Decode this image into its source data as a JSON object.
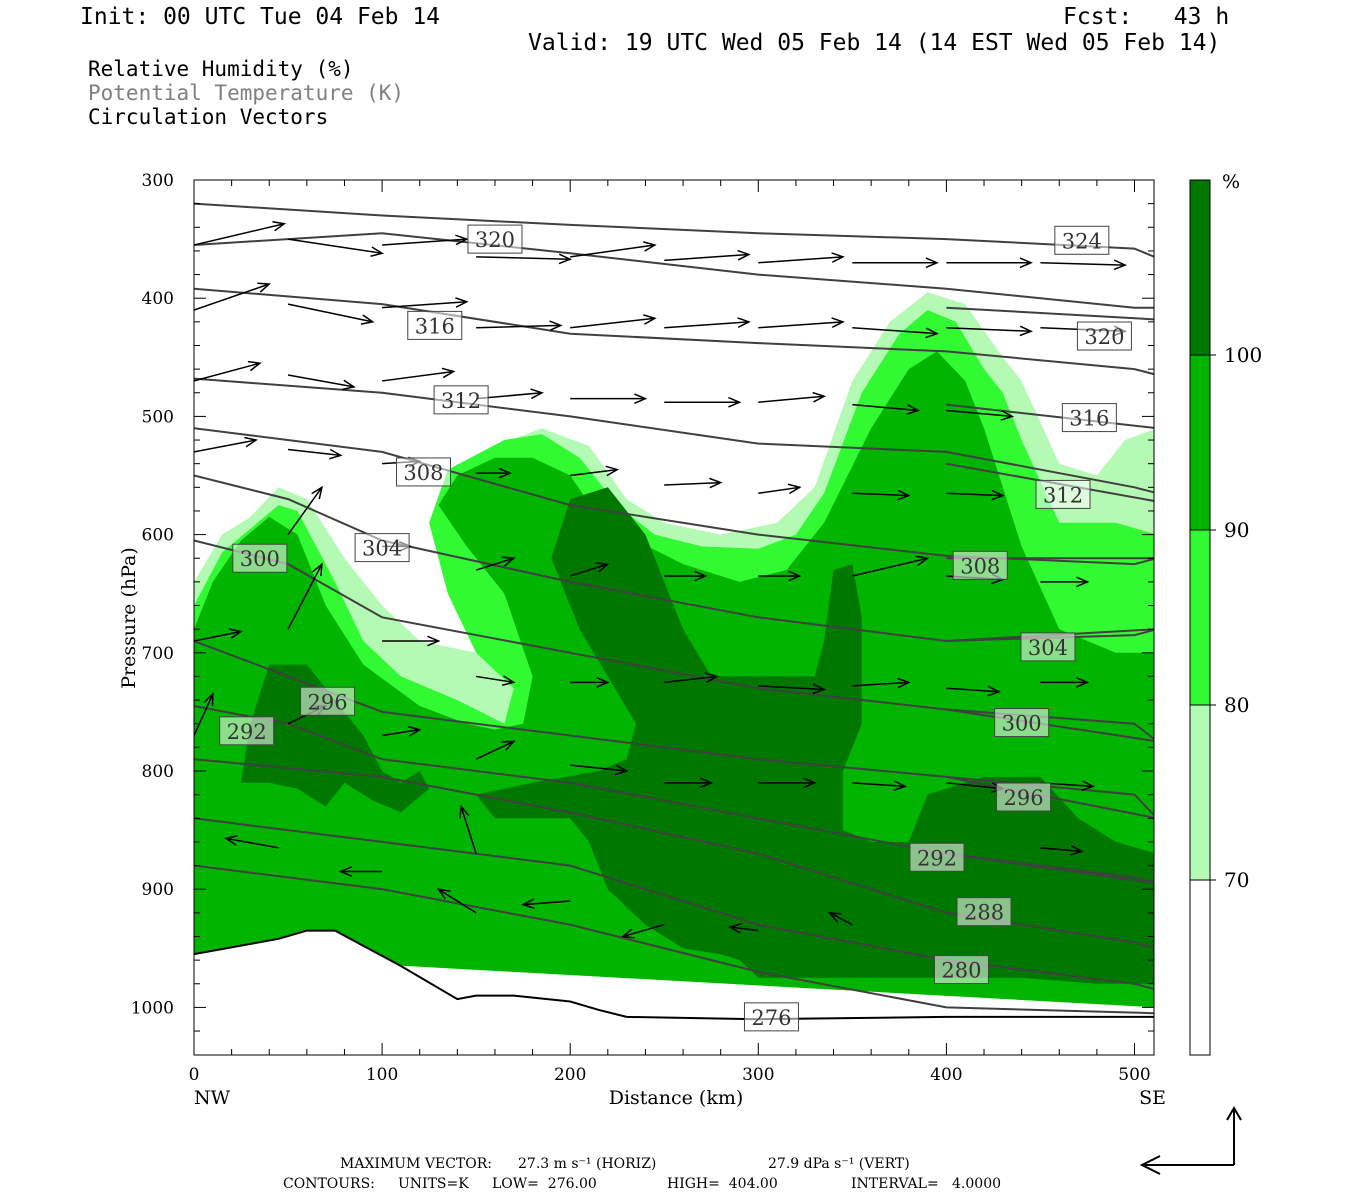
{
  "header": {
    "init": "Init: 00 UTC Tue 04 Feb 14",
    "fcst": "Fcst:   43 h",
    "valid": "Valid: 19 UTC Wed 05 Feb 14 (14 EST Wed 05 Feb 14)"
  },
  "legend": {
    "rh": "Relative Humidity (%)",
    "theta": "Potential Temperature (K)",
    "vectors": "Circulation Vectors"
  },
  "footer": {
    "max_vector_label": "MAXIMUM VECTOR:",
    "max_vector_horiz": "27.3 m s⁻¹ (HORIZ)",
    "max_vector_vert": "27.9 dPa s⁻¹ (VERT)",
    "contours_label": "CONTOURS:",
    "contours_units": "UNITS=K",
    "contours_low": "LOW=  276.00",
    "contours_high": "HIGH=  404.00",
    "contours_interval": "INTERVAL=   4.0000"
  },
  "colorbar": {
    "unit": "%",
    "levels": [
      {
        "label": "100",
        "color": "#007800"
      },
      {
        "label": "90",
        "color": "#00b400"
      },
      {
        "label": "80",
        "color": "#32fa32"
      },
      {
        "label": "70",
        "color": "#b4fab4"
      },
      {
        "label": "",
        "color": "#ffffff"
      }
    ]
  },
  "chart_data": {
    "type": "cross-section",
    "xlabel": "Distance (km)",
    "ylabel": "Pressure (hPa)",
    "x_ticks": [
      0,
      100,
      200,
      300,
      400,
      500
    ],
    "y_ticks": [
      300,
      400,
      500,
      600,
      700,
      800,
      900,
      1000
    ],
    "xlim": [
      0,
      512
    ],
    "ylim": [
      1040,
      300
    ],
    "endpoints": {
      "left": "NW",
      "right": "SE"
    },
    "rh_levels": [
      70,
      80,
      90,
      100
    ],
    "rh_colors": [
      "#b4fab4",
      "#32fa32",
      "#00b400",
      "#007800"
    ],
    "theta_line_color": "#404040",
    "theta_contours": [
      {
        "value": 324,
        "points": [
          [
            0,
            320
          ],
          [
            100,
            330
          ],
          [
            200,
            338
          ],
          [
            300,
            345
          ],
          [
            400,
            350
          ],
          [
            500,
            358
          ],
          [
            512,
            366
          ]
        ],
        "label_at": [
          472,
          351
        ]
      },
      {
        "value": 320,
        "points": [
          [
            0,
            355
          ],
          [
            100,
            345
          ],
          [
            200,
            362
          ],
          [
            300,
            380
          ],
          [
            400,
            392
          ],
          [
            500,
            408
          ],
          [
            512,
            408
          ]
        ],
        "label_at": [
          160,
          350
        ]
      },
      {
        "value": 320,
        "points": [
          [
            400,
            408
          ],
          [
            512,
            418
          ]
        ],
        "label_at": [
          484,
          432
        ]
      },
      {
        "value": 316,
        "points": [
          [
            0,
            392
          ],
          [
            100,
            405
          ],
          [
            200,
            430
          ],
          [
            300,
            438
          ],
          [
            400,
            445
          ],
          [
            500,
            460
          ],
          [
            512,
            465
          ]
        ],
        "label_at": [
          128,
          423
        ]
      },
      {
        "value": 316,
        "points": [
          [
            400,
            490
          ],
          [
            512,
            510
          ]
        ],
        "label_at": [
          476,
          501
        ]
      },
      {
        "value": 312,
        "points": [
          [
            0,
            468
          ],
          [
            100,
            480
          ],
          [
            200,
            500
          ],
          [
            300,
            523
          ],
          [
            400,
            530
          ],
          [
            500,
            560
          ],
          [
            512,
            565
          ]
        ],
        "label_at": [
          142,
          486
        ]
      },
      {
        "value": 312,
        "points": [
          [
            400,
            540
          ],
          [
            512,
            572
          ]
        ],
        "label_at": [
          462,
          566
        ]
      },
      {
        "value": 308,
        "points": [
          [
            0,
            510
          ],
          [
            100,
            530
          ],
          [
            200,
            575
          ],
          [
            300,
            600
          ],
          [
            400,
            618
          ],
          [
            500,
            625
          ],
          [
            512,
            620
          ]
        ],
        "label_at": [
          122,
          547
        ]
      },
      {
        "value": 308,
        "points": [
          [
            400,
            620
          ],
          [
            512,
            620
          ]
        ],
        "label_at": [
          418,
          626
        ]
      },
      {
        "value": 304,
        "points": [
          [
            0,
            550
          ],
          [
            50,
            570
          ],
          [
            100,
            605
          ],
          [
            200,
            640
          ],
          [
            300,
            670
          ],
          [
            400,
            690
          ],
          [
            500,
            685
          ],
          [
            512,
            680
          ]
        ],
        "label_at": [
          100,
          611
        ]
      },
      {
        "value": 304,
        "points": [
          [
            400,
            690
          ],
          [
            512,
            680
          ]
        ],
        "label_at": [
          454,
          695
        ]
      },
      {
        "value": 300,
        "points": [
          [
            0,
            605
          ],
          [
            50,
            625
          ],
          [
            100,
            670
          ],
          [
            200,
            700
          ],
          [
            300,
            730
          ],
          [
            400,
            748
          ],
          [
            500,
            760
          ],
          [
            512,
            775
          ]
        ],
        "label_at": [
          35,
          620
        ]
      },
      {
        "value": 300,
        "points": [
          [
            400,
            748
          ],
          [
            512,
            775
          ]
        ],
        "label_at": [
          440,
          759
        ]
      },
      {
        "value": 296,
        "points": [
          [
            0,
            690
          ],
          [
            50,
            720
          ],
          [
            100,
            750
          ],
          [
            200,
            770
          ],
          [
            300,
            790
          ],
          [
            400,
            805
          ],
          [
            500,
            820
          ],
          [
            512,
            840
          ]
        ],
        "label_at": [
          71,
          741
        ]
      },
      {
        "value": 296,
        "points": [
          [
            400,
            805
          ],
          [
            512,
            840
          ]
        ],
        "label_at": [
          441,
          822
        ]
      },
      {
        "value": 292,
        "points": [
          [
            0,
            745
          ],
          [
            50,
            760
          ],
          [
            100,
            790
          ],
          [
            200,
            810
          ],
          [
            300,
            840
          ],
          [
            400,
            870
          ],
          [
            500,
            890
          ],
          [
            512,
            895
          ]
        ],
        "label_at": [
          28,
          766
        ]
      },
      {
        "value": 292,
        "points": [
          [
            400,
            870
          ],
          [
            512,
            895
          ]
        ],
        "label_at": [
          395,
          873
        ]
      },
      {
        "value": 288,
        "points": [
          [
            0,
            790
          ],
          [
            100,
            805
          ],
          [
            200,
            835
          ],
          [
            300,
            870
          ],
          [
            400,
            920
          ],
          [
            500,
            945
          ],
          [
            512,
            950
          ]
        ],
        "label_at": [
          420,
          919
        ]
      },
      {
        "value": 280,
        "points": [
          [
            0,
            840
          ],
          [
            100,
            860
          ],
          [
            200,
            880
          ],
          [
            300,
            930
          ],
          [
            400,
            960
          ],
          [
            500,
            980
          ],
          [
            512,
            985
          ]
        ],
        "label_at": [
          408,
          968
        ]
      },
      {
        "value": 276,
        "points": [
          [
            0,
            880
          ],
          [
            100,
            900
          ],
          [
            200,
            930
          ],
          [
            300,
            970
          ],
          [
            400,
            1000
          ],
          [
            512,
            1005
          ]
        ],
        "label_at": [
          307,
          1008
        ]
      }
    ],
    "vectors": [
      {
        "x": 0,
        "p": 355,
        "dx": 48,
        "dp": -18
      },
      {
        "x": 50,
        "p": 350,
        "dx": 50,
        "dp": 12
      },
      {
        "x": 100,
        "p": 355,
        "dx": 45,
        "dp": -5
      },
      {
        "x": 150,
        "p": 365,
        "dx": 50,
        "dp": 2
      },
      {
        "x": 200,
        "p": 365,
        "dx": 45,
        "dp": -10
      },
      {
        "x": 250,
        "p": 368,
        "dx": 45,
        "dp": -5
      },
      {
        "x": 300,
        "p": 370,
        "dx": 45,
        "dp": -5
      },
      {
        "x": 350,
        "p": 370,
        "dx": 45,
        "dp": 0
      },
      {
        "x": 400,
        "p": 370,
        "dx": 45,
        "dp": 0
      },
      {
        "x": 450,
        "p": 370,
        "dx": 45,
        "dp": 2
      },
      {
        "x": 0,
        "p": 410,
        "dx": 40,
        "dp": -22
      },
      {
        "x": 50,
        "p": 405,
        "dx": 45,
        "dp": 15
      },
      {
        "x": 100,
        "p": 408,
        "dx": 45,
        "dp": -5
      },
      {
        "x": 150,
        "p": 425,
        "dx": 45,
        "dp": -2
      },
      {
        "x": 200,
        "p": 425,
        "dx": 45,
        "dp": -8
      },
      {
        "x": 250,
        "p": 425,
        "dx": 45,
        "dp": -5
      },
      {
        "x": 300,
        "p": 425,
        "dx": 45,
        "dp": -5
      },
      {
        "x": 350,
        "p": 425,
        "dx": 45,
        "dp": 5
      },
      {
        "x": 400,
        "p": 425,
        "dx": 45,
        "dp": 3
      },
      {
        "x": 450,
        "p": 425,
        "dx": 45,
        "dp": 3
      },
      {
        "x": 0,
        "p": 470,
        "dx": 35,
        "dp": -15
      },
      {
        "x": 50,
        "p": 465,
        "dx": 35,
        "dp": 10
      },
      {
        "x": 100,
        "p": 470,
        "dx": 38,
        "dp": -8
      },
      {
        "x": 150,
        "p": 485,
        "dx": 35,
        "dp": -5
      },
      {
        "x": 200,
        "p": 485,
        "dx": 40,
        "dp": 0
      },
      {
        "x": 250,
        "p": 488,
        "dx": 40,
        "dp": 0
      },
      {
        "x": 300,
        "p": 488,
        "dx": 35,
        "dp": -5
      },
      {
        "x": 350,
        "p": 490,
        "dx": 35,
        "dp": 5
      },
      {
        "x": 400,
        "p": 495,
        "dx": 35,
        "dp": 5
      },
      {
        "x": 0,
        "p": 530,
        "dx": 33,
        "dp": -10
      },
      {
        "x": 50,
        "p": 528,
        "dx": 28,
        "dp": 5
      },
      {
        "x": 100,
        "p": 540,
        "dx": 20,
        "dp": -2
      },
      {
        "x": 150,
        "p": 548,
        "dx": 18,
        "dp": 0
      },
      {
        "x": 200,
        "p": 550,
        "dx": 25,
        "dp": -5
      },
      {
        "x": 250,
        "p": 558,
        "dx": 30,
        "dp": -2
      },
      {
        "x": 300,
        "p": 565,
        "dx": 22,
        "dp": -5
      },
      {
        "x": 350,
        "p": 565,
        "dx": 30,
        "dp": 2
      },
      {
        "x": 400,
        "p": 565,
        "dx": 30,
        "dp": 2
      },
      {
        "x": 50,
        "p": 600,
        "dx": 18,
        "dp": -40
      },
      {
        "x": 100,
        "p": 610,
        "dx": 15,
        "dp": 0
      },
      {
        "x": 150,
        "p": 630,
        "dx": 20,
        "dp": -10
      },
      {
        "x": 200,
        "p": 635,
        "dx": 20,
        "dp": -10
      },
      {
        "x": 250,
        "p": 635,
        "dx": 22,
        "dp": 0
      },
      {
        "x": 300,
        "p": 635,
        "dx": 22,
        "dp": 0
      },
      {
        "x": 350,
        "p": 635,
        "dx": 40,
        "dp": -15
      },
      {
        "x": 400,
        "p": 635,
        "dx": 30,
        "dp": 3
      },
      {
        "x": 450,
        "p": 640,
        "dx": 25,
        "dp": 0
      },
      {
        "x": 0,
        "p": 690,
        "dx": 25,
        "dp": -8
      },
      {
        "x": 50,
        "p": 680,
        "dx": 18,
        "dp": -55
      },
      {
        "x": 100,
        "p": 690,
        "dx": 30,
        "dp": 0
      },
      {
        "x": 150,
        "p": 720,
        "dx": 20,
        "dp": 5
      },
      {
        "x": 200,
        "p": 725,
        "dx": 20,
        "dp": 0
      },
      {
        "x": 250,
        "p": 725,
        "dx": 28,
        "dp": -5
      },
      {
        "x": 300,
        "p": 728,
        "dx": 35,
        "dp": 3
      },
      {
        "x": 350,
        "p": 728,
        "dx": 30,
        "dp": -3
      },
      {
        "x": 400,
        "p": 730,
        "dx": 28,
        "dp": 3
      },
      {
        "x": 450,
        "p": 725,
        "dx": 25,
        "dp": 0
      },
      {
        "x": 0,
        "p": 770,
        "dx": 10,
        "dp": -35
      },
      {
        "x": 50,
        "p": 760,
        "dx": 20,
        "dp": -15
      },
      {
        "x": 100,
        "p": 770,
        "dx": 20,
        "dp": -5
      },
      {
        "x": 150,
        "p": 790,
        "dx": 20,
        "dp": -15
      },
      {
        "x": 200,
        "p": 795,
        "dx": 30,
        "dp": 5
      },
      {
        "x": 250,
        "p": 810,
        "dx": 25,
        "dp": 0
      },
      {
        "x": 300,
        "p": 810,
        "dx": 30,
        "dp": 0
      },
      {
        "x": 350,
        "p": 810,
        "dx": 28,
        "dp": 3
      },
      {
        "x": 400,
        "p": 810,
        "dx": 30,
        "dp": 5
      },
      {
        "x": 450,
        "p": 810,
        "dx": 28,
        "dp": 3
      },
      {
        "x": 45,
        "p": 865,
        "dx": -28,
        "dp": -8
      },
      {
        "x": 100,
        "p": 885,
        "dx": -22,
        "dp": 0
      },
      {
        "x": 150,
        "p": 870,
        "dx": -8,
        "dp": -40
      },
      {
        "x": 200,
        "p": 910,
        "dx": -25,
        "dp": 3
      },
      {
        "x": 250,
        "p": 930,
        "dx": -22,
        "dp": 10
      },
      {
        "x": 300,
        "p": 935,
        "dx": -15,
        "dp": -3
      },
      {
        "x": 350,
        "p": 930,
        "dx": -12,
        "dp": -10
      },
      {
        "x": 450,
        "p": 865,
        "dx": 22,
        "dp": 3
      },
      {
        "x": 150,
        "p": 920,
        "dx": -20,
        "dp": -20
      }
    ]
  }
}
